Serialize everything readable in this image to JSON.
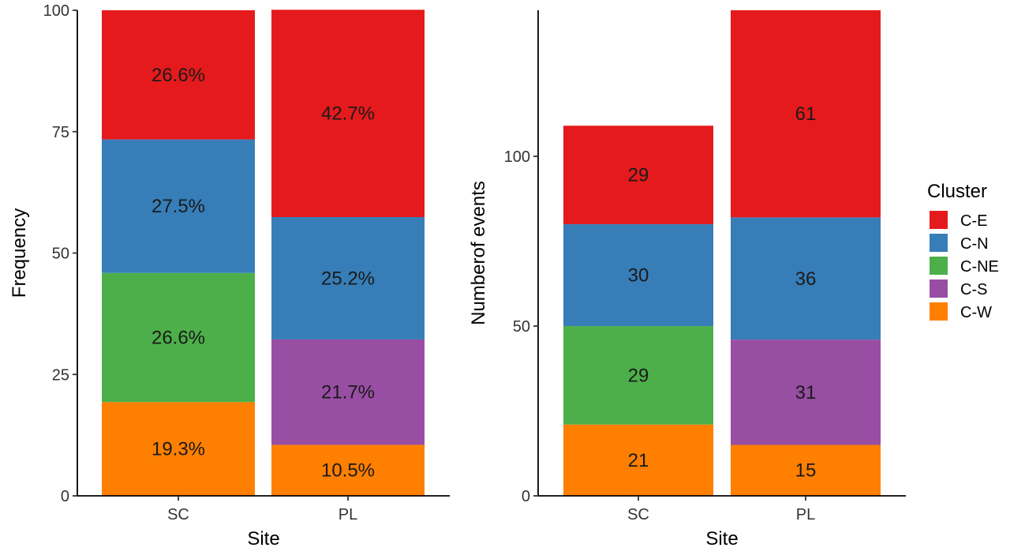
{
  "chart_data": [
    {
      "type": "bar",
      "stacked": true,
      "xlabel": "Site",
      "ylabel": "Frequency",
      "categories": [
        "SC",
        "PL"
      ],
      "ylim": [
        0,
        100
      ],
      "yticks": [
        "0",
        "25",
        "50",
        "75",
        "100"
      ],
      "stack_order": [
        "C-W",
        "C-S",
        "C-NE",
        "C-N",
        "C-E"
      ],
      "series": [
        {
          "name": "C-W",
          "values": [
            19.3,
            10.5
          ],
          "labels": [
            "19.3%",
            "10.5%"
          ]
        },
        {
          "name": "C-S",
          "values": [
            0,
            21.7
          ],
          "labels": [
            "",
            "21.7%"
          ]
        },
        {
          "name": "C-NE",
          "values": [
            26.6,
            0
          ],
          "labels": [
            "26.6%",
            ""
          ]
        },
        {
          "name": "C-N",
          "values": [
            27.5,
            25.2
          ],
          "labels": [
            "27.5%",
            "25.2%"
          ]
        },
        {
          "name": "C-E",
          "values": [
            26.6,
            42.7
          ],
          "labels": [
            "26.6%",
            "42.7%"
          ]
        }
      ]
    },
    {
      "type": "bar",
      "stacked": true,
      "xlabel": "Site",
      "ylabel": "Numberof events",
      "categories": [
        "SC",
        "PL"
      ],
      "ylim": [
        0,
        143
      ],
      "yticks": [
        "0",
        "50",
        "100"
      ],
      "stack_order": [
        "C-W",
        "C-S",
        "C-NE",
        "C-N",
        "C-E"
      ],
      "series": [
        {
          "name": "C-W",
          "values": [
            21,
            15
          ],
          "labels": [
            "21",
            "15"
          ]
        },
        {
          "name": "C-S",
          "values": [
            0,
            31
          ],
          "labels": [
            "",
            "31"
          ]
        },
        {
          "name": "C-NE",
          "values": [
            29,
            0
          ],
          "labels": [
            "29",
            ""
          ]
        },
        {
          "name": "C-N",
          "values": [
            30,
            36
          ],
          "labels": [
            "30",
            "36"
          ]
        },
        {
          "name": "C-E",
          "values": [
            29,
            61
          ],
          "labels": [
            "29",
            "61"
          ]
        }
      ]
    }
  ],
  "legend": {
    "title": "Cluster",
    "position": "right",
    "items": [
      {
        "name": "C-E",
        "color": "#E41A1C"
      },
      {
        "name": "C-N",
        "color": "#377EB8"
      },
      {
        "name": "C-NE",
        "color": "#4DAF4A"
      },
      {
        "name": "C-S",
        "color": "#984EA3"
      },
      {
        "name": "C-W",
        "color": "#FF7F00"
      }
    ]
  },
  "colors": {
    "C-E": "#E41A1C",
    "C-N": "#377EB8",
    "C-NE": "#4DAF4A",
    "C-S": "#984EA3",
    "C-W": "#FF7F00"
  }
}
